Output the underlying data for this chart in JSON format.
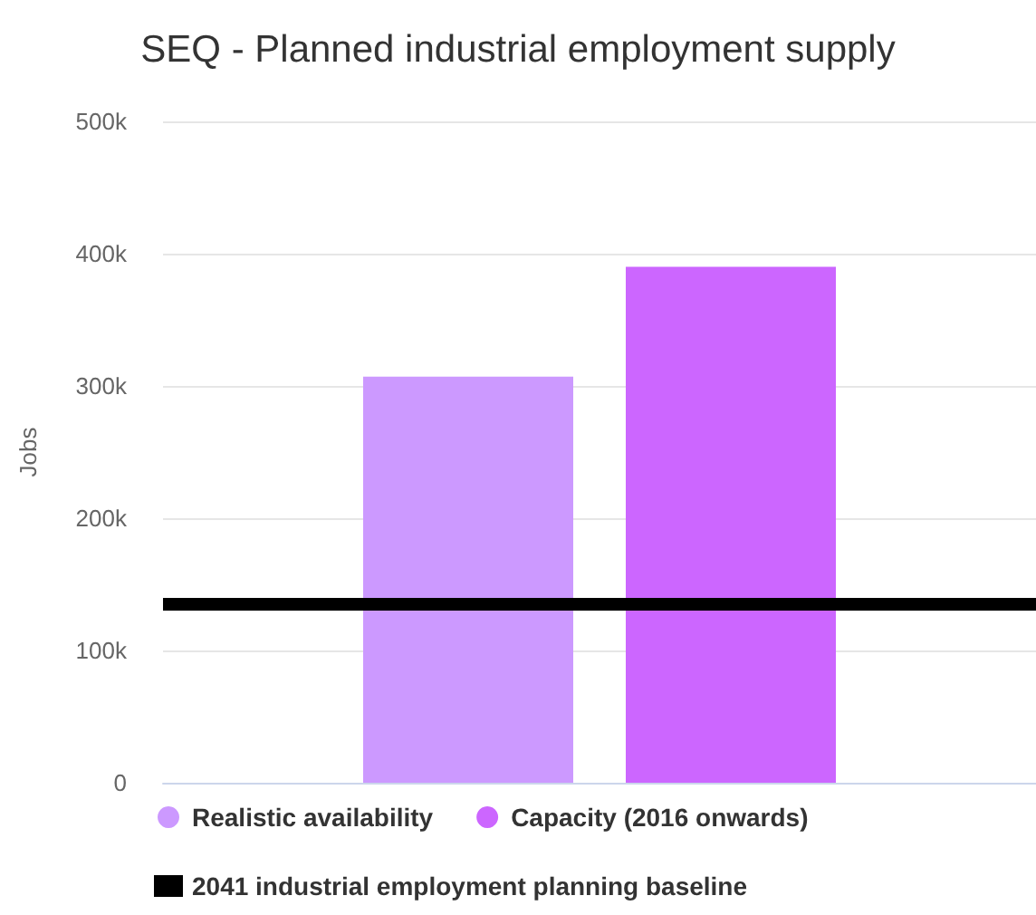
{
  "chart_data": {
    "type": "bar",
    "title": "SEQ - Planned industrial employment supply",
    "ylabel": "Jobs",
    "categories": [
      null
    ],
    "series": [
      {
        "name": "Realistic availability",
        "color": "#cc99ff",
        "values": [
          307000
        ]
      },
      {
        "name": "Capacity (2016 onwards)",
        "color": "#cc66ff",
        "values": [
          390000
        ]
      }
    ],
    "ylim": [
      0,
      500000
    ],
    "yticks": [
      {
        "value": 0,
        "label": "0"
      },
      {
        "value": 100000,
        "label": "100k"
      },
      {
        "value": 200000,
        "label": "200k"
      },
      {
        "value": 300000,
        "label": "300k"
      },
      {
        "value": 400000,
        "label": "400k"
      },
      {
        "value": 500000,
        "label": "500k"
      }
    ],
    "grid": "y",
    "legend": "bottom left",
    "marker": "circle",
    "ref_lines": [
      {
        "axis": "y",
        "value": 135000,
        "label": "2041 industrial employment planning baseline",
        "color": "#000000"
      }
    ]
  }
}
